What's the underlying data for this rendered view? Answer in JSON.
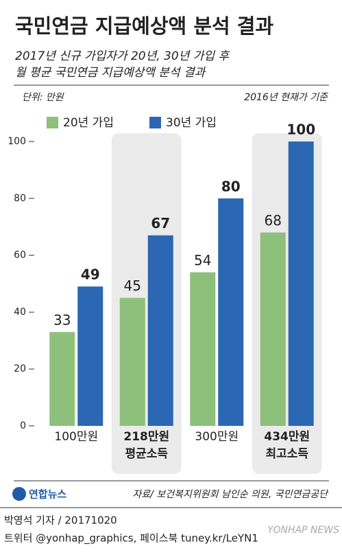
{
  "chart_data": {
    "type": "bar",
    "title": "국민연금 지급예상액 분석 결과",
    "subtitle": [
      "2017년 신규 가입자가 20년, 30년 가입 후",
      "월 평균 국민연금 지급예상액 분석 결과"
    ],
    "unit_label": "단위: 만원",
    "note": "2016년 현재가 기준",
    "categories": [
      "100만원",
      "218만원",
      "300만원",
      "434만원"
    ],
    "category_notes": [
      null,
      "평균소득",
      null,
      "최고소득"
    ],
    "highlight": [
      1,
      3
    ],
    "series": [
      {
        "name": "20년 가입",
        "color": "#8dc07a",
        "values": [
          33,
          45,
          54,
          68
        ]
      },
      {
        "name": "30년 가입",
        "color": "#2c67b4",
        "values": [
          49,
          67,
          80,
          100
        ]
      }
    ],
    "ylim": [
      0,
      100
    ],
    "yticks": [
      0,
      20,
      40,
      60,
      80,
      100
    ],
    "footer": {
      "logo": "연합뉴스",
      "source": "자료/ 보건복지위원회 남인순 의원, 국민연금공단",
      "author": "박영석 기자 / 20171020",
      "sns": "트위터 @yonhap_graphics, 페이스북 tuney.kr/LeYN1",
      "watermark": "YONHAP NEWS"
    }
  }
}
